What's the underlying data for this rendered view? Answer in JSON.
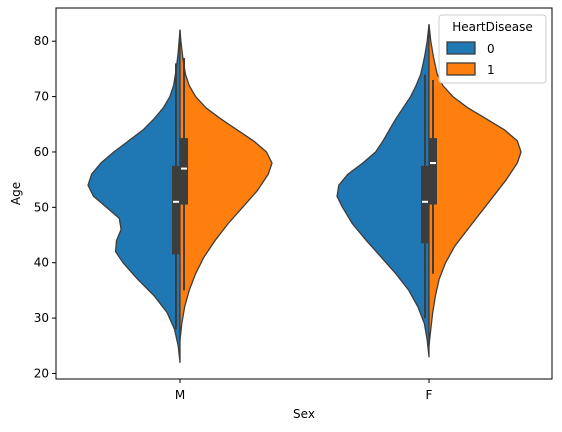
{
  "chart_data": {
    "type": "violin",
    "split": true,
    "title": "",
    "xlabel": "Sex",
    "ylabel": "Age",
    "categories": [
      "M",
      "F"
    ],
    "ylim": [
      19,
      86
    ],
    "yticks": [
      20,
      30,
      40,
      50,
      60,
      70,
      80
    ],
    "grid": false,
    "legend": {
      "title": "HeartDisease",
      "placement": "top-right",
      "entries": [
        {
          "label": "0",
          "color": "#1f77b4"
        },
        {
          "label": "1",
          "color": "#ff7f0e"
        }
      ]
    },
    "series": [
      {
        "name": "0",
        "color": "#1f77b4",
        "side": "left",
        "groups": [
          {
            "category": "M",
            "min": 28,
            "q1": 41.5,
            "median": 51,
            "q3": 57.5,
            "max": 76,
            "kde_min": 22,
            "kde_max": 82,
            "density": [
              [
                22,
                0.0
              ],
              [
                25,
                0.02
              ],
              [
                28,
                0.06
              ],
              [
                31,
                0.14
              ],
              [
                34,
                0.28
              ],
              [
                37,
                0.46
              ],
              [
                40,
                0.62
              ],
              [
                42,
                0.7
              ],
              [
                44,
                0.69
              ],
              [
                46,
                0.64
              ],
              [
                48,
                0.66
              ],
              [
                50,
                0.8
              ],
              [
                52,
                0.94
              ],
              [
                54,
                1.0
              ],
              [
                56,
                0.96
              ],
              [
                58,
                0.86
              ],
              [
                60,
                0.72
              ],
              [
                62,
                0.56
              ],
              [
                64,
                0.4
              ],
              [
                66,
                0.28
              ],
              [
                68,
                0.18
              ],
              [
                70,
                0.11
              ],
              [
                72,
                0.07
              ],
              [
                75,
                0.04
              ],
              [
                78,
                0.02
              ],
              [
                82,
                0.0
              ]
            ]
          },
          {
            "category": "F",
            "min": 30,
            "q1": 43.5,
            "median": 51,
            "q3": 57.5,
            "max": 74,
            "kde_min": 23,
            "kde_max": 83,
            "density": [
              [
                23,
                0.0
              ],
              [
                26,
                0.02
              ],
              [
                29,
                0.05
              ],
              [
                32,
                0.12
              ],
              [
                35,
                0.22
              ],
              [
                38,
                0.36
              ],
              [
                41,
                0.52
              ],
              [
                44,
                0.68
              ],
              [
                47,
                0.83
              ],
              [
                50,
                0.94
              ],
              [
                52,
                1.0
              ],
              [
                54,
                0.98
              ],
              [
                56,
                0.88
              ],
              [
                58,
                0.72
              ],
              [
                60,
                0.58
              ],
              [
                62,
                0.5
              ],
              [
                64,
                0.43
              ],
              [
                66,
                0.36
              ],
              [
                68,
                0.28
              ],
              [
                70,
                0.2
              ],
              [
                72,
                0.14
              ],
              [
                74,
                0.09
              ],
              [
                77,
                0.05
              ],
              [
                80,
                0.02
              ],
              [
                83,
                0.0
              ]
            ]
          }
        ]
      },
      {
        "name": "1",
        "color": "#ff7f0e",
        "side": "right",
        "groups": [
          {
            "category": "M",
            "min": 35,
            "q1": 50.5,
            "median": 57,
            "q3": 62.5,
            "max": 77,
            "kde_min": 26,
            "kde_max": 82,
            "density": [
              [
                26,
                0.0
              ],
              [
                29,
                0.02
              ],
              [
                32,
                0.05
              ],
              [
                35,
                0.1
              ],
              [
                38,
                0.17
              ],
              [
                41,
                0.26
              ],
              [
                44,
                0.38
              ],
              [
                47,
                0.52
              ],
              [
                50,
                0.68
              ],
              [
                53,
                0.84
              ],
              [
                56,
                0.96
              ],
              [
                58,
                1.0
              ],
              [
                60,
                0.94
              ],
              [
                62,
                0.8
              ],
              [
                64,
                0.62
              ],
              [
                66,
                0.44
              ],
              [
                68,
                0.28
              ],
              [
                70,
                0.17
              ],
              [
                72,
                0.1
              ],
              [
                74,
                0.06
              ],
              [
                77,
                0.03
              ],
              [
                80,
                0.01
              ],
              [
                82,
                0.0
              ]
            ]
          },
          {
            "category": "F",
            "min": 38,
            "q1": 50.5,
            "median": 58,
            "q3": 62.5,
            "max": 73,
            "kde_min": 25,
            "kde_max": 83,
            "density": [
              [
                25,
                0.0
              ],
              [
                28,
                0.02
              ],
              [
                31,
                0.04
              ],
              [
                34,
                0.07
              ],
              [
                37,
                0.11
              ],
              [
                40,
                0.18
              ],
              [
                43,
                0.28
              ],
              [
                46,
                0.42
              ],
              [
                49,
                0.56
              ],
              [
                52,
                0.7
              ],
              [
                55,
                0.84
              ],
              [
                58,
                0.96
              ],
              [
                60,
                1.0
              ],
              [
                62,
                0.96
              ],
              [
                64,
                0.82
              ],
              [
                66,
                0.62
              ],
              [
                68,
                0.42
              ],
              [
                70,
                0.26
              ],
              [
                72,
                0.15
              ],
              [
                74,
                0.09
              ],
              [
                77,
                0.05
              ],
              [
                80,
                0.02
              ],
              [
                83,
                0.0
              ]
            ]
          }
        ]
      }
    ]
  }
}
